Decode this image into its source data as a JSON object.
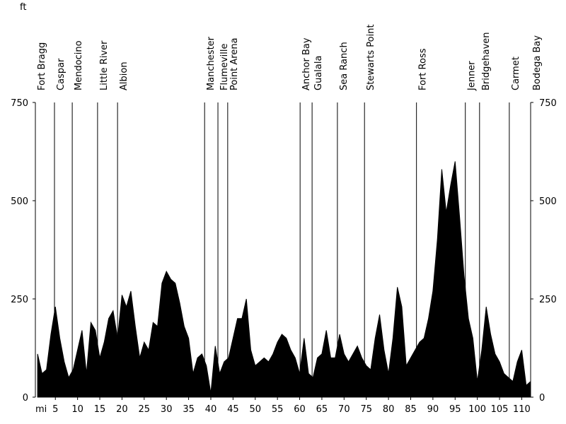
{
  "chart_data": {
    "type": "area",
    "x_label": "mi",
    "y_label": "ft",
    "x": [
      1,
      2,
      3,
      4,
      5,
      6,
      7,
      8,
      9,
      10,
      11,
      12,
      13,
      14,
      15,
      16,
      17,
      18,
      19,
      20,
      21,
      22,
      23,
      24,
      25,
      26,
      27,
      28,
      29,
      30,
      31,
      32,
      33,
      34,
      35,
      36,
      37,
      38,
      39,
      40,
      41,
      42,
      43,
      44,
      45,
      46,
      47,
      48,
      49,
      50,
      51,
      52,
      53,
      54,
      55,
      56,
      57,
      58,
      59,
      60,
      61,
      62,
      63,
      64,
      65,
      66,
      67,
      68,
      69,
      70,
      71,
      72,
      73,
      74,
      75,
      76,
      77,
      78,
      79,
      80,
      81,
      82,
      83,
      84,
      85,
      86,
      87,
      88,
      89,
      90,
      91,
      92,
      93,
      94,
      95,
      96,
      97,
      98,
      99,
      100,
      101,
      102,
      103,
      104,
      105,
      106,
      107,
      108,
      109,
      110,
      111,
      112
    ],
    "values": [
      110,
      60,
      70,
      160,
      230,
      150,
      90,
      50,
      70,
      120,
      170,
      60,
      190,
      170,
      100,
      140,
      200,
      220,
      150,
      260,
      230,
      270,
      180,
      100,
      140,
      120,
      190,
      180,
      290,
      320,
      300,
      290,
      240,
      180,
      150,
      60,
      100,
      110,
      80,
      10,
      130,
      60,
      90,
      100,
      150,
      200,
      200,
      250,
      120,
      80,
      90,
      100,
      90,
      110,
      140,
      160,
      150,
      120,
      100,
      60,
      150,
      60,
      50,
      100,
      110,
      170,
      100,
      100,
      160,
      110,
      90,
      110,
      130,
      100,
      80,
      70,
      150,
      210,
      120,
      60,
      150,
      280,
      230,
      80,
      100,
      120,
      140,
      150,
      200,
      270,
      400,
      580,
      470,
      540,
      600,
      460,
      310,
      200,
      150,
      40,
      120,
      230,
      160,
      110,
      90,
      60,
      50,
      40,
      90,
      120,
      30,
      40
    ],
    "color": "#000000",
    "xlim": [
      0.5,
      112
    ],
    "ylim": [
      0,
      750
    ],
    "xticks": [
      5,
      10,
      15,
      20,
      25,
      30,
      35,
      40,
      45,
      50,
      55,
      60,
      65,
      70,
      75,
      80,
      85,
      90,
      95,
      100,
      105,
      110
    ],
    "yticks": [
      0,
      250,
      500,
      750
    ],
    "markers": [
      {
        "label": "Fort Bragg",
        "x": 0.5
      },
      {
        "label": "Caspar",
        "x": 4.8
      },
      {
        "label": "Mendocino",
        "x": 8.8
      },
      {
        "label": "Little River",
        "x": 14.5
      },
      {
        "label": "Albion",
        "x": 19.0
      },
      {
        "label": "Manchester",
        "x": 38.6
      },
      {
        "label": "Flumeville",
        "x": 41.6
      },
      {
        "label": "Point Arena",
        "x": 43.8
      },
      {
        "label": "Anchor Bay",
        "x": 60.1
      },
      {
        "label": "Gualala",
        "x": 62.8
      },
      {
        "label": "Sea Ranch",
        "x": 68.5
      },
      {
        "label": "Stewarts Point",
        "x": 74.6
      },
      {
        "label": "Fort Ross",
        "x": 86.3
      },
      {
        "label": "Jenner",
        "x": 97.3
      },
      {
        "label": "Bridgehaven",
        "x": 100.5
      },
      {
        "label": "Carmet",
        "x": 107.2
      },
      {
        "label": "Bodega Bay",
        "x": 112.0
      }
    ]
  }
}
